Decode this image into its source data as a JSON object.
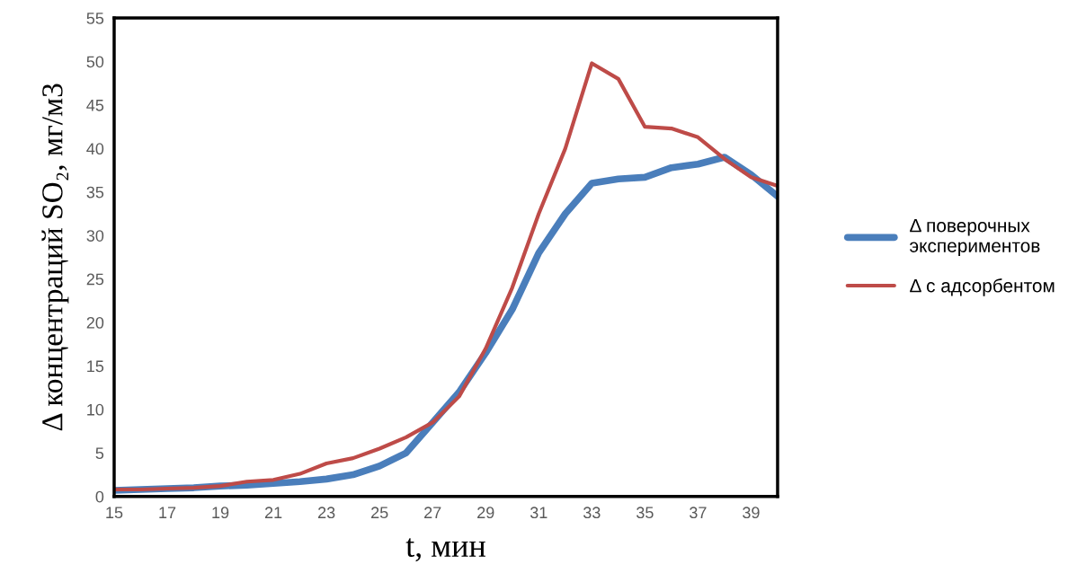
{
  "chart_data": {
    "type": "line",
    "xlabel": "t, мин",
    "ylabel": "Δ концентраций SO₂, мг/м3",
    "x": [
      15,
      16,
      17,
      18,
      19,
      20,
      21,
      22,
      23,
      24,
      25,
      26,
      27,
      28,
      29,
      30,
      31,
      32,
      33,
      34,
      35,
      36,
      37,
      38,
      39,
      40
    ],
    "series": [
      {
        "name": "Δ поверочных\nэкспериментов",
        "color": "#4a7ebb",
        "values": [
          0.7,
          0.8,
          0.9,
          1.0,
          1.2,
          1.3,
          1.5,
          1.7,
          2.0,
          2.5,
          3.5,
          5.0,
          8.5,
          12,
          16.5,
          21.5,
          28,
          32.5,
          36,
          36.5,
          36.7,
          37.8,
          38.2,
          39,
          37,
          34.5
        ]
      },
      {
        "name": "Δ с адсорбентом",
        "color": "#be4b48",
        "values": [
          0.8,
          0.8,
          0.9,
          1.0,
          1.2,
          1.7,
          1.9,
          2.6,
          3.8,
          4.4,
          5.5,
          6.8,
          8.5,
          11.5,
          17,
          24,
          32.5,
          40,
          49.8,
          48,
          42.5,
          42.3,
          41.3,
          38.8,
          36.7,
          35.7
        ]
      }
    ],
    "xlim": [
      15,
      40
    ],
    "xticks": [
      15,
      17,
      19,
      21,
      23,
      25,
      27,
      29,
      31,
      33,
      35,
      37,
      39
    ],
    "ylim": [
      0,
      55
    ],
    "yticks": [
      0,
      5,
      10,
      15,
      20,
      25,
      30,
      35,
      40,
      45,
      50,
      55
    ],
    "grid": false,
    "legend": "right",
    "marker": "none",
    "line_style": "solid"
  }
}
